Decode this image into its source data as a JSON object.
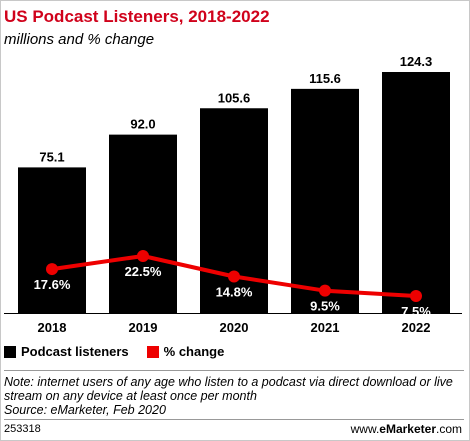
{
  "header": {
    "title": "US Podcast Listeners, 2018-2022",
    "subtitle": "millions and % change"
  },
  "chart_data": {
    "type": "bar",
    "title": "US Podcast Listeners, 2018-2022",
    "subtitle": "millions and % change",
    "categories": [
      "2018",
      "2019",
      "2020",
      "2021",
      "2022"
    ],
    "series": [
      {
        "name": "Podcast listeners",
        "type": "bar",
        "values": [
          75.1,
          92.0,
          105.6,
          115.6,
          124.3
        ],
        "labels": [
          "75.1",
          "92.0",
          "105.6",
          "115.6",
          "124.3"
        ],
        "color": "#000000"
      },
      {
        "name": "% change",
        "type": "line",
        "values": [
          17.6,
          22.5,
          14.8,
          9.5,
          7.5
        ],
        "labels": [
          "17.6%",
          "22.5%",
          "14.8%",
          "9.5%",
          "7.5%"
        ],
        "color": "#ee0000"
      }
    ],
    "grid": false,
    "legend_position": "bottom-left"
  },
  "legend": {
    "bars_label": "Podcast listeners",
    "line_label": "% change"
  },
  "footer": {
    "note": "Note: internet users of any age who listen to a podcast via direct download or live stream on any device at least once per month",
    "source": "Source: eMarketer, Feb 2020",
    "chart_id": "253318",
    "brand_prefix": "www.",
    "brand_name": "eMarketer",
    "brand_suffix": ".com"
  },
  "colors": {
    "title": "#d0021b",
    "bar": "#000000",
    "line": "#ee0000"
  }
}
